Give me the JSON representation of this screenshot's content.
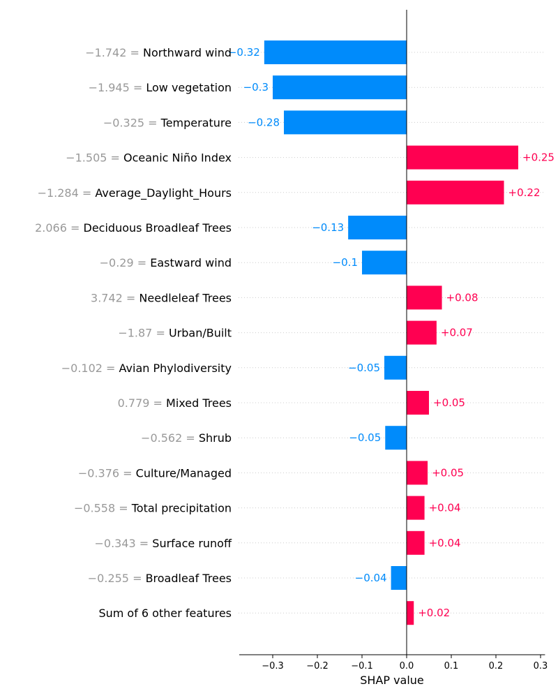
{
  "chart_data": {
    "type": "bar",
    "orientation": "horizontal",
    "xlabel": "SHAP value",
    "xlim": [
      -0.375,
      0.31
    ],
    "xticks": [
      -0.3,
      -0.2,
      -0.1,
      0.0,
      0.1,
      0.2,
      0.3
    ],
    "xtick_labels": [
      "−0.3",
      "−0.2",
      "−0.1",
      "0.0",
      "0.1",
      "0.2",
      "0.3"
    ],
    "grid": "horizontal dotted",
    "colors": {
      "positive": "#ff0051",
      "negative": "#008bfb",
      "gridline": "#cccccc"
    },
    "features": [
      {
        "value": "−1.742",
        "name": "Northward wind",
        "shap": -0.319,
        "label": "−0.32"
      },
      {
        "value": "−1.945",
        "name": "Low vegetation",
        "shap": -0.3,
        "label": "−0.3"
      },
      {
        "value": "−0.325",
        "name": "Temperature",
        "shap": -0.275,
        "label": "−0.28"
      },
      {
        "value": "−1.505",
        "name": "Oceanic Niño Index",
        "shap": 0.25,
        "label": "+0.25"
      },
      {
        "value": "−1.284",
        "name": "Average_Daylight_Hours",
        "shap": 0.218,
        "label": "+0.22"
      },
      {
        "value": "2.066",
        "name": "Deciduous Broadleaf Trees",
        "shap": -0.131,
        "label": "−0.13"
      },
      {
        "value": "−0.29",
        "name": "Eastward wind",
        "shap": -0.1,
        "label": "−0.1"
      },
      {
        "value": "3.742",
        "name": "Needleleaf Trees",
        "shap": 0.079,
        "label": "+0.08"
      },
      {
        "value": "−1.87",
        "name": "Urban/Built",
        "shap": 0.067,
        "label": "+0.07"
      },
      {
        "value": "−0.102",
        "name": "Avian Phylodiversity",
        "shap": -0.05,
        "label": "−0.05"
      },
      {
        "value": "0.779",
        "name": "Mixed Trees",
        "shap": 0.05,
        "label": "+0.05"
      },
      {
        "value": "−0.562",
        "name": "Shrub",
        "shap": -0.048,
        "label": "−0.05"
      },
      {
        "value": "−0.376",
        "name": "Culture/Managed",
        "shap": 0.047,
        "label": "+0.05"
      },
      {
        "value": "−0.558",
        "name": "Total precipitation",
        "shap": 0.04,
        "label": "+0.04"
      },
      {
        "value": "−0.343",
        "name": "Surface runoff",
        "shap": 0.04,
        "label": "+0.04"
      },
      {
        "value": "−0.255",
        "name": "Broadleaf Trees",
        "shap": -0.035,
        "label": "−0.04"
      },
      {
        "value": "",
        "name": "Sum of 6 other features",
        "shap": 0.016,
        "label": "+0.02"
      }
    ]
  }
}
